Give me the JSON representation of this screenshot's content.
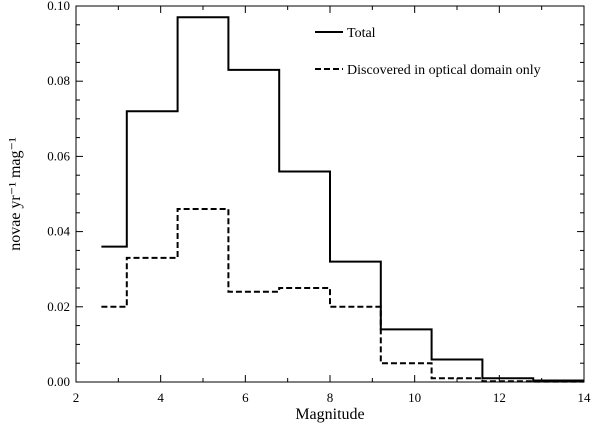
{
  "chart_data": {
    "type": "line",
    "step": true,
    "title": "",
    "xlabel": "Magnitude",
    "ylabel": "novae yr⁻¹ mag⁻¹",
    "xlim": [
      2,
      14
    ],
    "ylim": [
      0,
      0.1
    ],
    "xticks": [
      2,
      4,
      6,
      8,
      10,
      12,
      14
    ],
    "yticks": [
      0.0,
      0.02,
      0.04,
      0.06,
      0.08,
      0.1
    ],
    "xtick_labels": [
      "2",
      "4",
      "6",
      "8",
      "10",
      "12",
      "14"
    ],
    "ytick_labels": [
      "0.00",
      "0.02",
      "0.04",
      "0.06",
      "0.08",
      "0.10"
    ],
    "bin_edges": [
      2.6,
      3.2,
      4.4,
      5.6,
      6.8,
      8.0,
      9.2,
      10.4,
      11.6,
      12.8,
      14.0
    ],
    "series": [
      {
        "name": "Total",
        "style": "solid",
        "values": [
          0.036,
          0.072,
          0.097,
          0.083,
          0.056,
          0.032,
          0.014,
          0.006,
          0.001,
          0.0004
        ]
      },
      {
        "name": "Discovered in optical domain only",
        "style": "dashed",
        "values": [
          0.02,
          0.033,
          0.046,
          0.024,
          0.025,
          0.02,
          0.005,
          0.001,
          0.0002,
          0.0001
        ]
      }
    ],
    "legend_position": "top-right",
    "grid": false
  }
}
